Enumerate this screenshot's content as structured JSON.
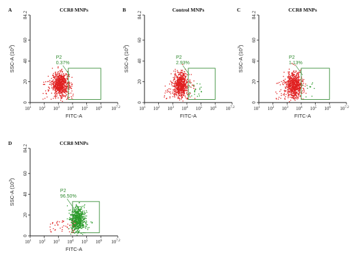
{
  "chart_data": [
    {
      "type": "scatter",
      "letter": "A",
      "title": "CCR8 MNPs",
      "xlabel": "FITC-A",
      "ylabel": "SSC-A (10^3)",
      "x_scale": "log",
      "xlim": [
        1,
        7.2
      ],
      "ylim": [
        0,
        84.2
      ],
      "x_ticks": [
        "1",
        "2",
        "3",
        "4",
        "5",
        "6",
        "7.2"
      ],
      "y_ticks": [
        "0",
        "20",
        "40",
        "60",
        "84.2"
      ],
      "gate": {
        "name": "P2",
        "percent": "0.37%",
        "x_range": [
          3.7,
          6.0
        ],
        "y_range": [
          3,
          33
        ]
      },
      "populations": [
        {
          "color": "#e02020",
          "center_log_x": 3.15,
          "center_y": 18,
          "spread_x": 0.3,
          "spread_y": 5.5,
          "count": 700
        },
        {
          "color": "#e02020",
          "center_log_x": 3.0,
          "center_y": 12,
          "spread_x": 1.1,
          "spread_y": 9,
          "count": 70,
          "scatter": true
        }
      ]
    },
    {
      "type": "scatter",
      "letter": "B",
      "title": "Control MNPs",
      "xlabel": "FITC-A",
      "ylabel": "SSC-A (10^3)",
      "x_scale": "log",
      "xlim": [
        1,
        7.2
      ],
      "ylim": [
        0,
        84.2
      ],
      "x_ticks": [
        "1",
        "2",
        "3",
        "4",
        "5",
        "6",
        "7.2"
      ],
      "y_ticks": [
        "0",
        "20",
        "40",
        "60",
        "84.2"
      ],
      "gate": {
        "name": "P2",
        "percent": "2.93%",
        "x_range": [
          4.1,
          6.0
        ],
        "y_range": [
          3,
          33
        ]
      },
      "populations": [
        {
          "color": "#e02020",
          "center_log_x": 3.55,
          "center_y": 17,
          "spread_x": 0.25,
          "spread_y": 6,
          "count": 650
        },
        {
          "color": "#e02020",
          "center_log_x": 3.5,
          "center_y": 12,
          "spread_x": 1.1,
          "spread_y": 9,
          "count": 60,
          "scatter": true
        },
        {
          "color": "#2a9a2a",
          "center_log_x": 4.6,
          "center_y": 12,
          "spread_x": 0.5,
          "spread_y": 7,
          "count": 25,
          "scatter": true
        }
      ]
    },
    {
      "type": "scatter",
      "letter": "C",
      "title": "CCR8 MNPs",
      "xlabel": "FITC-A",
      "ylabel": "SSC-A (10^3)",
      "x_scale": "log",
      "xlim": [
        1,
        7.2
      ],
      "ylim": [
        0,
        84.2
      ],
      "x_ticks": [
        "1",
        "2",
        "3",
        "4",
        "5",
        "6",
        "7.2"
      ],
      "y_ticks": [
        "0",
        "20",
        "40",
        "60",
        "84.2"
      ],
      "gate": {
        "name": "P2",
        "percent": "1.13%",
        "x_range": [
          4.0,
          6.0
        ],
        "y_range": [
          3,
          33
        ]
      },
      "populations": [
        {
          "color": "#e02020",
          "center_log_x": 3.5,
          "center_y": 17,
          "spread_x": 0.28,
          "spread_y": 6,
          "count": 680
        },
        {
          "color": "#e02020",
          "center_log_x": 3.3,
          "center_y": 12,
          "spread_x": 1.1,
          "spread_y": 9,
          "count": 60,
          "scatter": true
        },
        {
          "color": "#2a9a2a",
          "center_log_x": 4.5,
          "center_y": 12,
          "spread_x": 0.5,
          "spread_y": 7,
          "count": 12,
          "scatter": true
        }
      ]
    },
    {
      "type": "scatter",
      "letter": "D",
      "title": "CCR8 MNPs",
      "xlabel": "FITC-A",
      "ylabel": "SSC-A (10^3)",
      "x_scale": "log",
      "xlim": [
        1,
        7.2
      ],
      "ylim": [
        0,
        84.2
      ],
      "x_ticks": [
        "1",
        "2",
        "3",
        "4",
        "5",
        "6",
        "7.2"
      ],
      "y_ticks": [
        "0",
        "20",
        "40",
        "60",
        "84.2"
      ],
      "gate": {
        "name": "P2",
        "percent": "96.50%",
        "x_range": [
          4.0,
          5.9
        ],
        "y_range": [
          3,
          33
        ]
      },
      "populations": [
        {
          "color": "#2a9a2a",
          "center_log_x": 4.35,
          "center_y": 16,
          "spread_x": 0.25,
          "spread_y": 6,
          "count": 650
        },
        {
          "color": "#e02020",
          "center_log_x": 3.3,
          "center_y": 9,
          "spread_x": 0.9,
          "spread_y": 6,
          "count": 45,
          "scatter": true
        },
        {
          "color": "#2a9a2a",
          "center_log_x": 4.6,
          "center_y": 14,
          "spread_x": 0.9,
          "spread_y": 8,
          "count": 30,
          "scatter": true
        }
      ]
    }
  ]
}
